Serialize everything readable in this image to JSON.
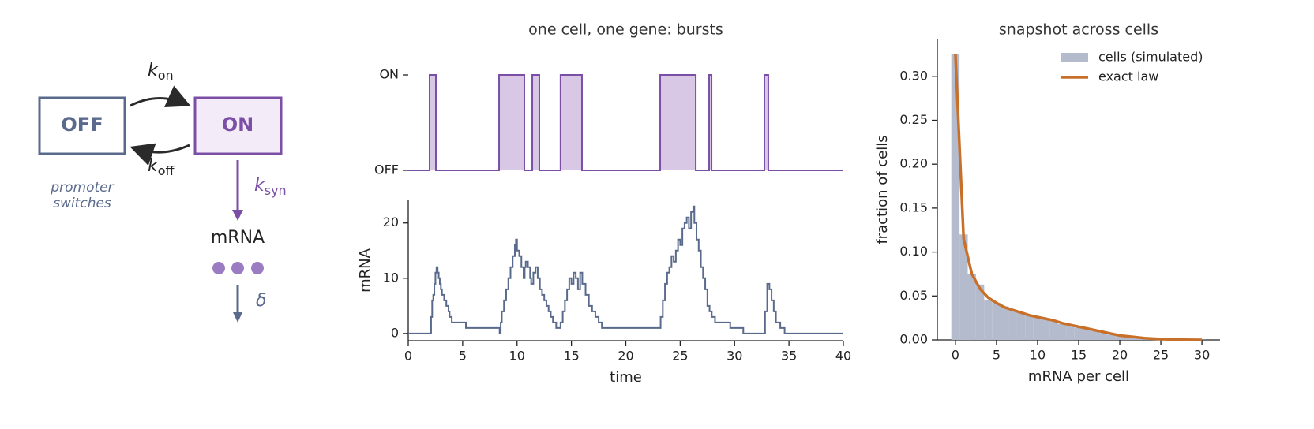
{
  "diagram": {
    "states": [
      "OFF",
      "ON"
    ],
    "rates": [
      {
        "symbol": "k",
        "subscript": "on"
      },
      {
        "symbol": "k",
        "subscript": "off"
      },
      {
        "symbol": "k",
        "subscript": "syn"
      }
    ],
    "caption_lines": [
      "promoter",
      "switches"
    ],
    "product": "mRNA",
    "decay": "δ"
  },
  "chart_data": [
    {
      "type": "step",
      "title": "one cell, one gene: bursts",
      "color": "#7b4fa6",
      "fill_color": "#d8c8e6",
      "x": [
        0,
        1.96,
        2.54,
        8.35,
        10.67,
        11.4,
        12.05,
        14.0,
        15.97,
        23.16,
        26.43,
        27.66,
        27.88,
        32.74,
        33.1,
        40
      ],
      "values": [
        0,
        1,
        0,
        1,
        0,
        1,
        0,
        1,
        0,
        1,
        0,
        1,
        0,
        1,
        0,
        0
      ],
      "xlim": [
        0,
        40
      ],
      "ylim": [
        0,
        1
      ],
      "yticks": [
        {
          "value": 0,
          "label": "OFF"
        },
        {
          "value": 1,
          "label": "ON"
        }
      ]
    },
    {
      "type": "step",
      "xlabel": "time",
      "ylabel": "mRNA",
      "color": "#5a6a8c",
      "spines": [
        "left",
        "bottom"
      ],
      "x": [
        0,
        2.1,
        2.2,
        2.3,
        2.4,
        2.5,
        2.6,
        2.7,
        2.8,
        2.9,
        3.0,
        3.1,
        3.3,
        3.5,
        3.7,
        3.8,
        4.0,
        5.3,
        5.8,
        8.4,
        8.5,
        8.6,
        8.8,
        9.0,
        9.2,
        9.4,
        9.6,
        9.8,
        9.9,
        10.0,
        10.2,
        10.4,
        10.6,
        10.7,
        10.8,
        11.0,
        11.2,
        11.3,
        11.5,
        11.7,
        11.9,
        12.1,
        12.3,
        12.5,
        12.7,
        12.9,
        13.1,
        13.3,
        13.6,
        14.0,
        14.2,
        14.4,
        14.6,
        14.8,
        15.0,
        15.2,
        15.4,
        15.6,
        15.8,
        16.0,
        16.3,
        16.6,
        16.9,
        17.2,
        17.5,
        17.8,
        23.2,
        23.4,
        23.6,
        23.8,
        24.0,
        24.2,
        24.4,
        24.6,
        24.8,
        25.0,
        25.2,
        25.4,
        25.6,
        25.8,
        26.0,
        26.2,
        26.3,
        26.5,
        26.7,
        26.9,
        27.1,
        27.3,
        27.5,
        27.7,
        27.9,
        28.2,
        29.6,
        30.8,
        32.8,
        33.0,
        33.2,
        33.4,
        33.6,
        33.8,
        34.2,
        34.6,
        40
      ],
      "values": [
        0,
        3,
        6,
        7,
        9,
        11,
        12,
        11,
        10,
        9,
        8,
        7,
        6,
        5,
        4,
        3,
        2,
        1,
        1,
        0,
        2,
        4,
        6,
        8,
        10,
        12,
        14,
        16,
        17,
        15,
        14,
        12,
        10,
        12,
        13,
        12,
        10,
        9,
        11,
        12,
        10,
        8,
        7,
        6,
        5,
        4,
        3,
        2,
        1,
        2,
        4,
        6,
        8,
        10,
        9,
        11,
        10,
        8,
        11,
        9,
        7,
        5,
        4,
        3,
        2,
        1,
        3,
        6,
        9,
        11,
        12,
        14,
        13,
        15,
        17,
        16,
        19,
        20,
        21,
        19,
        22,
        23,
        20,
        17,
        15,
        12,
        10,
        8,
        5,
        4,
        3,
        2,
        1,
        0,
        4,
        9,
        8,
        6,
        4,
        2,
        1,
        0,
        0
      ],
      "xlim": [
        0,
        40
      ],
      "ylim": [
        -1.3,
        24.1
      ],
      "xticks": [
        0,
        5,
        10,
        15,
        20,
        25,
        30,
        35,
        40
      ],
      "yticks": [
        0,
        10,
        20
      ]
    },
    {
      "type": "histogram",
      "title": "snapshot across cells",
      "xlabel": "mRNA per cell",
      "ylabel": "fraction of cells",
      "spines": [
        "left",
        "bottom"
      ],
      "legend": "upper right",
      "series": [
        {
          "name": "cells (simulated)",
          "color": "#b4bbcc",
          "bins": [
            -0.5,
            0.5,
            1.5,
            2.5,
            3.5,
            4.5,
            5.5,
            6.5,
            7.5,
            8.5,
            9.5,
            10.5,
            11.5,
            12.5,
            13.5,
            14.5,
            15.5,
            16.5,
            17.5,
            18.5,
            19.5,
            20.5,
            21.5,
            22.5,
            23.5,
            24.5,
            25.5,
            26.5,
            27.5,
            28.5,
            29.5,
            30.5
          ],
          "values": [
            0.325,
            0.12,
            0.075,
            0.063,
            0.045,
            0.042,
            0.038,
            0.034,
            0.031,
            0.028,
            0.026,
            0.024,
            0.021,
            0.018,
            0.016,
            0.014,
            0.012,
            0.01,
            0.008,
            0.006,
            0.005,
            0.004,
            0.003,
            0.002,
            0.0015,
            0.001,
            0.0007,
            0.0005,
            0.0003,
            0.0002,
            0.0001
          ]
        },
        {
          "name": "exact law",
          "color": "#c8702a",
          "x": [
            0,
            1,
            2,
            3,
            4,
            5,
            6,
            7,
            8,
            9,
            10,
            11,
            12,
            13,
            14,
            15,
            16,
            17,
            18,
            19,
            20,
            21,
            22,
            23,
            24,
            25,
            26,
            27,
            28,
            29,
            30
          ],
          "values": [
            0.325,
            0.115,
            0.075,
            0.058,
            0.048,
            0.042,
            0.037,
            0.034,
            0.031,
            0.028,
            0.026,
            0.024,
            0.022,
            0.019,
            0.017,
            0.015,
            0.013,
            0.011,
            0.009,
            0.007,
            0.005,
            0.004,
            0.003,
            0.002,
            0.0015,
            0.001,
            0.0007,
            0.0004,
            0.0002,
            0.0001,
            5e-05
          ]
        }
      ],
      "xlim": [
        -2.2,
        32.2
      ],
      "ylim": [
        0,
        0.342
      ],
      "xticks": [
        0,
        5,
        10,
        15,
        20,
        25,
        30
      ],
      "yticks": [
        {
          "value": 0,
          "label": "0.00"
        },
        {
          "value": 0.05,
          "label": "0.05"
        },
        {
          "value": 0.1,
          "label": "0.10"
        },
        {
          "value": 0.15,
          "label": "0.15"
        },
        {
          "value": 0.2,
          "label": "0.20"
        },
        {
          "value": 0.25,
          "label": "0.25"
        },
        {
          "value": 0.3,
          "label": "0.30"
        }
      ]
    }
  ]
}
